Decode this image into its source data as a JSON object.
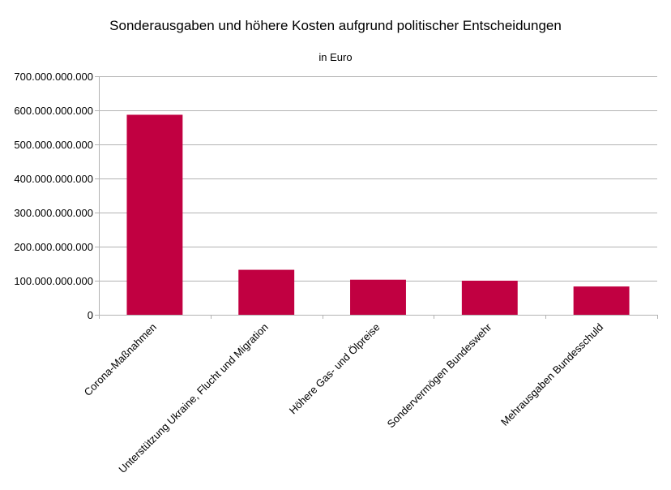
{
  "chart_data": {
    "type": "bar",
    "title": "Sonderausgaben und höhere Kosten aufgrund politischer Entscheidungen",
    "subtitle": "in Euro",
    "xlabel": "",
    "ylabel": "",
    "categories": [
      "Corona-Maßnahmen",
      "Unterstützung Ukraine, Flucht und Migration",
      "Höhere Gas- und Ölpreise",
      "Sondervermögen Bundeswehr",
      "Mehrausgaben Bundesschuld"
    ],
    "values": [
      587000000000,
      132000000000,
      103000000000,
      100000000000,
      83000000000
    ],
    "ylim": [
      0,
      700000000000
    ],
    "y_ticks": [
      0,
      100000000000,
      200000000000,
      300000000000,
      400000000000,
      500000000000,
      600000000000,
      700000000000
    ],
    "y_tick_labels": [
      "0",
      "100.000.000.000",
      "200.000.000.000",
      "300.000.000.000",
      "400.000.000.000",
      "500.000.000.000",
      "600.000.000.000",
      "700.000.000.000"
    ],
    "bar_color": "#c10041",
    "grid": true,
    "legend": "none"
  }
}
